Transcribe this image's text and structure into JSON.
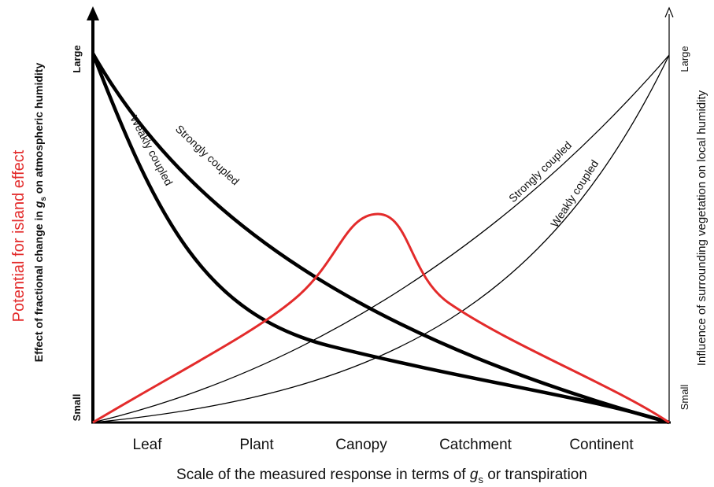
{
  "left_title": "Potential for island effect",
  "left_axis": {
    "before": "Effect of fractional change in ",
    "var": "g",
    "sub": "s",
    "after": " on atmospheric humidity",
    "top": "Large",
    "bottom": "Small"
  },
  "right_axis": {
    "text": "Influence of surrounding vegetation on local humidity",
    "top": "Large",
    "bottom": "Small"
  },
  "curve_labels": {
    "thick_strong": "Strongly coupled",
    "thick_weak": "Weakly coupled",
    "thin_strong": "Strongly coupled",
    "thin_weak": "Weakly coupled"
  },
  "categories": [
    "Leaf",
    "Plant",
    "Canopy",
    "Catchment",
    "Continent"
  ],
  "x_axis": {
    "before": "Scale of the measured response in terms of ",
    "var": "g",
    "sub": "s",
    "after": " or transpiration"
  }
}
